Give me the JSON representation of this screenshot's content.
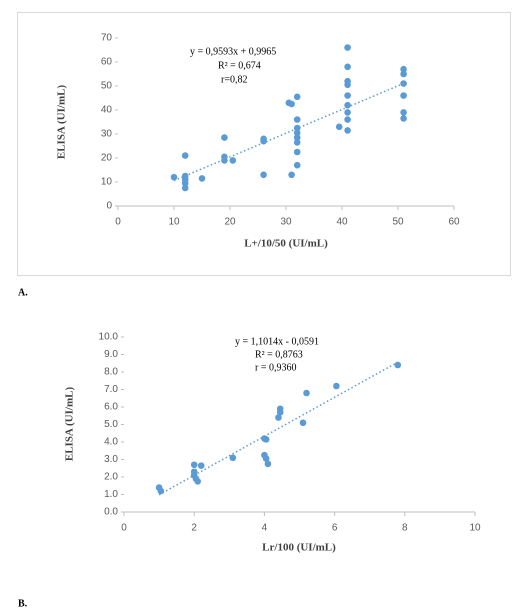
{
  "chart_data": [
    {
      "type": "scatter",
      "panel_label": "A.",
      "x_label": "L+/10/50 (UI/mL)",
      "y_label": "ELISA (UI/mL)",
      "annotations": [
        "y = 0,9593x + 0,9965",
        "R² = 0,674",
        "r=0,82"
      ],
      "color": "#5b9bd5",
      "xlim": [
        0,
        60
      ],
      "xticks": [
        0,
        10,
        20,
        30,
        40,
        50,
        60
      ],
      "ylim": [
        0,
        70
      ],
      "yticks": [
        0,
        10,
        20,
        30,
        40,
        50,
        60,
        70
      ],
      "x": [
        10,
        12,
        12,
        12,
        12,
        12,
        15,
        19,
        19,
        19,
        20.5,
        26,
        26,
        26,
        30.5,
        31,
        31,
        32,
        32,
        32,
        32,
        32,
        32,
        32,
        32,
        39.5,
        41,
        41,
        41,
        41,
        41,
        41,
        41,
        41,
        41,
        51,
        51,
        51,
        51,
        51,
        51
      ],
      "y": [
        12,
        21,
        12.5,
        11,
        9.5,
        7.5,
        11.5,
        28.5,
        20.5,
        19,
        19,
        28,
        27,
        13,
        43,
        42.5,
        13,
        45.5,
        36,
        32.5,
        30.5,
        28.5,
        26.5,
        22.5,
        17,
        33,
        66,
        58,
        52,
        50.5,
        46,
        42,
        39,
        36,
        31.5,
        57,
        55,
        51,
        46,
        39,
        36.5
      ]
    },
    {
      "type": "scatter",
      "panel_label": "B.",
      "x_label": "Lr/100 (UI/mL)",
      "y_label": "ELISA (UI/mL)",
      "annotations": [
        "y = 1,1014x - 0,0591",
        "R² = 0,8763",
        "r = 0,9360"
      ],
      "color": "#5b9bd5",
      "xlim": [
        0,
        10
      ],
      "xticks": [
        0,
        2,
        4,
        6,
        8,
        10
      ],
      "ylim": [
        0,
        10
      ],
      "yticks": [
        {
          "value": 0,
          "label": "0.0"
        },
        {
          "value": 1,
          "label": "1.0"
        },
        {
          "value": 2,
          "label": "2.0"
        },
        {
          "value": 3,
          "label": "3.0"
        },
        {
          "value": 4,
          "label": "4.0"
        },
        {
          "value": 5,
          "label": "5.0"
        },
        {
          "value": 6,
          "label": "6.0"
        },
        {
          "value": 7,
          "label": "7.0"
        },
        {
          "value": 8,
          "label": "8.0"
        },
        {
          "value": 9,
          "label": "9.0"
        },
        {
          "value": 10,
          "label": "10.0"
        }
      ],
      "x": [
        1.0,
        1.05,
        2.0,
        2.0,
        2.0,
        2.05,
        2.1,
        2.2,
        3.1,
        4.0,
        4.05,
        4.0,
        4.05,
        4.1,
        4.45,
        4.45,
        4.4,
        5.1,
        5.2,
        6.05,
        7.8
      ],
      "y": [
        1.4,
        1.2,
        2.7,
        2.3,
        2.1,
        1.9,
        1.75,
        2.65,
        3.1,
        4.2,
        4.15,
        3.25,
        3.05,
        2.75,
        5.9,
        5.7,
        5.4,
        5.1,
        6.8,
        7.2,
        8.4
      ]
    }
  ]
}
